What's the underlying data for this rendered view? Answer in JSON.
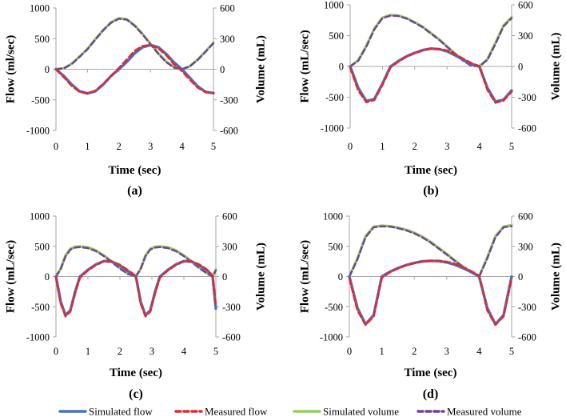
{
  "colors": {
    "simulated_flow": "#4472c4",
    "measured_flow": "#e8262b",
    "simulated_volume": "#92d050",
    "measured_volume": "#7040a0",
    "axis": "#a6a6a6"
  },
  "legend": [
    {
      "key": "simulated_flow",
      "label": "Simulated flow",
      "style": "solid"
    },
    {
      "key": "measured_flow",
      "label": "Measured flow",
      "style": "dashed"
    },
    {
      "key": "simulated_volume",
      "label": "Simulated volume",
      "style": "solid"
    },
    {
      "key": "measured_volume",
      "label": "Measured volume",
      "style": "dashed"
    }
  ],
  "chart_data": [
    {
      "type": "line",
      "panel": "(a)",
      "xlabel": "Time (sec)",
      "ylabel": "Flow (ml/sec)",
      "y2label": "Volume (mL)",
      "xlim": [
        0,
        5
      ],
      "xticks": [
        0,
        1,
        2,
        3,
        4,
        5
      ],
      "ylim": [
        -1000,
        1000
      ],
      "yticks": [
        1000,
        500,
        0,
        -500,
        -1000
      ],
      "y2lim": [
        -600,
        600
      ],
      "y2ticks": [
        600,
        300,
        0,
        -300,
        -600
      ],
      "x": [
        0,
        0.25,
        0.5,
        0.75,
        1,
        1.25,
        1.5,
        1.75,
        2,
        2.25,
        2.5,
        2.75,
        3,
        3.25,
        3.5,
        3.75,
        4,
        4.25,
        4.5,
        4.75,
        5
      ],
      "series": [
        {
          "name": "Simulated flow",
          "axis": "left",
          "values": [
            0,
            -110,
            -250,
            -360,
            -395,
            -360,
            -250,
            -110,
            0,
            120,
            260,
            360,
            395,
            360,
            250,
            110,
            0,
            -140,
            -280,
            -370,
            -390
          ]
        },
        {
          "name": "Measured flow",
          "axis": "left",
          "values": [
            0,
            -130,
            -270,
            -370,
            -395,
            -350,
            -240,
            -110,
            20,
            160,
            300,
            380,
            395,
            340,
            230,
            80,
            -30,
            -170,
            -300,
            -375,
            -390
          ]
        },
        {
          "name": "Simulated volume",
          "axis": "right",
          "values": [
            0,
            10,
            55,
            125,
            200,
            295,
            385,
            460,
            500,
            490,
            430,
            345,
            250,
            155,
            75,
            20,
            0,
            30,
            95,
            175,
            260
          ]
        },
        {
          "name": "Measured volume",
          "axis": "right",
          "values": [
            0,
            8,
            50,
            120,
            195,
            290,
            380,
            455,
            495,
            485,
            425,
            340,
            245,
            150,
            70,
            15,
            0,
            28,
            92,
            170,
            255
          ]
        }
      ]
    },
    {
      "type": "line",
      "panel": "(b)",
      "xlabel": "Time (sec)",
      "ylabel": "Flow (mL/sec)",
      "y2label": "Volume (mL)",
      "xlim": [
        0,
        5
      ],
      "xticks": [
        0,
        1,
        2,
        3,
        4,
        5
      ],
      "ylim": [
        -1000,
        1000
      ],
      "yticks": [
        1000,
        500,
        0,
        -500,
        -1000
      ],
      "y2lim": [
        -600,
        600
      ],
      "y2ticks": [
        600,
        300,
        0,
        -300,
        -600
      ],
      "x": [
        0,
        0.25,
        0.5,
        0.75,
        1,
        1.25,
        1.5,
        1.75,
        2,
        2.25,
        2.5,
        2.75,
        3,
        3.25,
        3.5,
        3.75,
        4,
        4.25,
        4.5,
        4.75,
        5
      ],
      "series": [
        {
          "name": "Simulated flow",
          "axis": "left",
          "values": [
            0,
            -350,
            -560,
            -530,
            -280,
            0,
            90,
            165,
            220,
            265,
            290,
            280,
            245,
            180,
            110,
            40,
            0,
            -350,
            -570,
            -540,
            -390
          ]
        },
        {
          "name": "Measured flow",
          "axis": "left",
          "values": [
            -20,
            -390,
            -580,
            -545,
            -300,
            -15,
            80,
            160,
            215,
            260,
            285,
            285,
            260,
            200,
            125,
            55,
            5,
            -380,
            -590,
            -555,
            -410
          ]
        },
        {
          "name": "Simulated volume",
          "axis": "right",
          "values": [
            0,
            60,
            200,
            370,
            475,
            500,
            495,
            470,
            430,
            385,
            325,
            265,
            195,
            125,
            60,
            10,
            0,
            70,
            230,
            400,
            480
          ]
        },
        {
          "name": "Measured volume",
          "axis": "right",
          "values": [
            0,
            55,
            190,
            360,
            470,
            495,
            490,
            465,
            425,
            380,
            320,
            260,
            190,
            120,
            55,
            8,
            0,
            65,
            220,
            390,
            470
          ]
        }
      ]
    },
    {
      "type": "line",
      "panel": "(c)",
      "xlabel": "Time (sec)",
      "ylabel": "Flow (mL/sec)",
      "y2label": "Volume (mL)",
      "xlim": [
        0,
        5
      ],
      "xticks": [
        0,
        1,
        2,
        3,
        4,
        5
      ],
      "ylim": [
        -1000,
        1000
      ],
      "yticks": [
        1000,
        500,
        0,
        -500,
        -1000
      ],
      "y2lim": [
        -600,
        600
      ],
      "y2ticks": [
        600,
        300,
        0,
        -300,
        -600
      ],
      "x": [
        0,
        0.15,
        0.3,
        0.45,
        0.6,
        0.75,
        1,
        1.25,
        1.5,
        1.75,
        2,
        2.25,
        2.5,
        2.65,
        2.8,
        2.95,
        3.1,
        3.25,
        3.5,
        3.75,
        4,
        4.25,
        4.5,
        4.75,
        4.9,
        5
      ],
      "series": [
        {
          "name": "Simulated flow",
          "axis": "left",
          "values": [
            0,
            -420,
            -640,
            -560,
            -250,
            0,
            110,
            200,
            255,
            245,
            180,
            90,
            0,
            -420,
            -640,
            -560,
            -250,
            0,
            110,
            200,
            255,
            245,
            180,
            90,
            0,
            -530
          ]
        },
        {
          "name": "Measured flow",
          "axis": "left",
          "values": [
            -10,
            -450,
            -660,
            -580,
            -280,
            -20,
            100,
            190,
            250,
            250,
            195,
            105,
            10,
            -450,
            -660,
            -580,
            -280,
            -20,
            100,
            190,
            250,
            250,
            195,
            105,
            10,
            -480
          ]
        },
        {
          "name": "Simulated volume",
          "axis": "right",
          "values": [
            0,
            80,
            210,
            275,
            295,
            300,
            290,
            260,
            210,
            150,
            85,
            30,
            0,
            80,
            210,
            275,
            295,
            300,
            290,
            260,
            210,
            150,
            85,
            30,
            0,
            70
          ]
        },
        {
          "name": "Measured volume",
          "axis": "right",
          "values": [
            0,
            75,
            200,
            268,
            288,
            292,
            282,
            252,
            202,
            142,
            78,
            25,
            0,
            75,
            200,
            268,
            288,
            292,
            282,
            252,
            202,
            142,
            78,
            25,
            0,
            60
          ]
        }
      ]
    },
    {
      "type": "line",
      "panel": "(d)",
      "xlabel": "Time (sec)",
      "ylabel": "Flow (mL/sec)",
      "y2label": "Volume (mL)",
      "xlim": [
        0,
        5
      ],
      "xticks": [
        0,
        1,
        2,
        3,
        4,
        5
      ],
      "ylim": [
        -1000,
        1000
      ],
      "yticks": [
        1000,
        500,
        0,
        -500,
        -1000
      ],
      "y2lim": [
        -600,
        600
      ],
      "y2ticks": [
        600,
        300,
        0,
        -300,
        -600
      ],
      "x": [
        0,
        0.25,
        0.5,
        0.75,
        1,
        1.25,
        1.5,
        1.75,
        2,
        2.25,
        2.5,
        2.75,
        3,
        3.25,
        3.5,
        3.75,
        4,
        4.25,
        4.5,
        4.75,
        5
      ],
      "series": [
        {
          "name": "Simulated flow",
          "axis": "left",
          "values": [
            0,
            -520,
            -790,
            -640,
            0,
            80,
            140,
            190,
            225,
            250,
            260,
            255,
            235,
            195,
            140,
            75,
            0,
            -520,
            -790,
            -640,
            0
          ]
        },
        {
          "name": "Measured flow",
          "axis": "left",
          "values": [
            -30,
            -560,
            -800,
            -660,
            -20,
            70,
            135,
            185,
            220,
            248,
            262,
            262,
            245,
            210,
            155,
            90,
            15,
            -560,
            -800,
            -660,
            -30
          ]
        },
        {
          "name": "Simulated volume",
          "axis": "right",
          "values": [
            0,
            180,
            400,
            495,
            505,
            500,
            485,
            465,
            435,
            395,
            345,
            285,
            225,
            160,
            100,
            45,
            0,
            190,
            400,
            495,
            510
          ]
        },
        {
          "name": "Measured volume",
          "axis": "right",
          "values": [
            0,
            170,
            390,
            488,
            498,
            495,
            480,
            458,
            428,
            388,
            338,
            278,
            218,
            154,
            94,
            40,
            0,
            180,
            390,
            488,
            500
          ]
        }
      ]
    }
  ]
}
